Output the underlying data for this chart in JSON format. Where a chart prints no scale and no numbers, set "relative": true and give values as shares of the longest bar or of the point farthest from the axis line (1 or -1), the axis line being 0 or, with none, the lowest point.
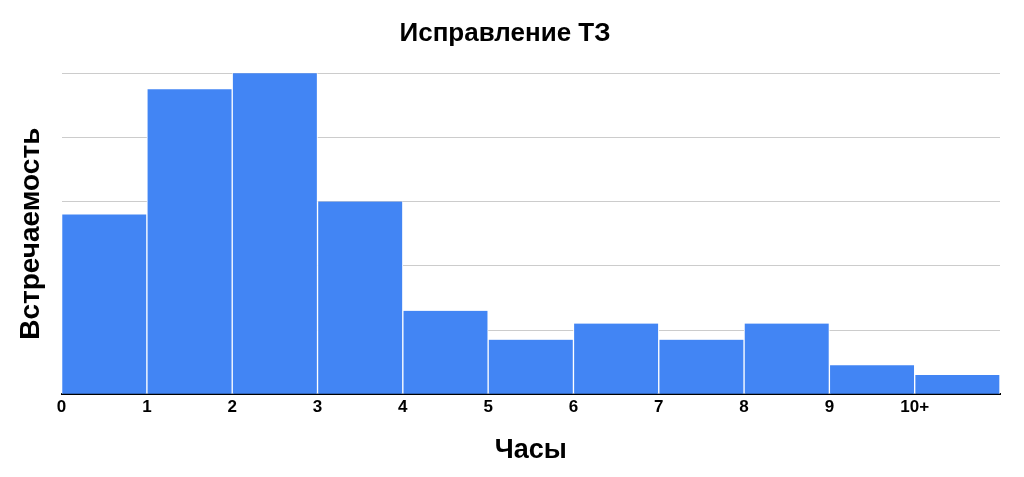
{
  "chart_data": {
    "type": "bar",
    "title": "Исправление ТЗ",
    "xlabel": "Часы",
    "ylabel": "Встречаемость",
    "x": [
      0.5,
      1.5,
      2.5,
      3.5,
      4.5,
      5.5,
      6.5,
      7.5,
      8.5,
      9.5,
      10.5
    ],
    "values": [
      0.56,
      0.95,
      1,
      0.6,
      0.26,
      0.17,
      0.22,
      0.17,
      0.22,
      0.09,
      0.06
    ],
    "color": "#4285f4",
    "relative": true,
    "xlim": [
      0,
      11
    ],
    "xticks": [
      0,
      1,
      2,
      3,
      4,
      5,
      6,
      7,
      8,
      9,
      {
        "value": 10,
        "label": "10+"
      }
    ],
    "grid": "y",
    "legend": false
  }
}
